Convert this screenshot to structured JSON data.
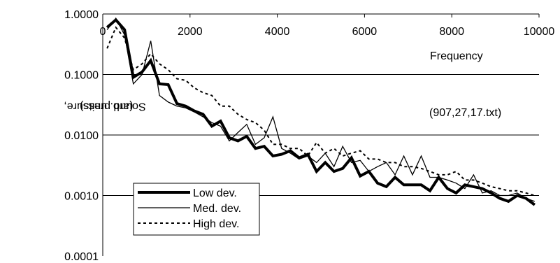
{
  "chart_data": {
    "type": "line",
    "title": "",
    "xlabel": "Frequency",
    "ylabel_line1": "Sound pressure,",
    "ylabel_line2": "(arb. units).",
    "annotation": "(907,27,17.txt)",
    "xlim": [
      0,
      10000
    ],
    "ylim": [
      0.0001,
      1.0
    ],
    "yscale": "log",
    "x_ticks": [
      "0",
      "2000",
      "4000",
      "6000",
      "8000",
      "10000"
    ],
    "y_ticks": [
      "1.0000",
      "0.1000",
      "0.0100",
      "0.0010",
      "0.0001"
    ],
    "grid": "horizontal",
    "legend_position": "lower-left",
    "series": [
      {
        "name": "Low dev.",
        "style": "thick-solid",
        "x": [
          100,
          300,
          500,
          700,
          900,
          1100,
          1300,
          1500,
          1700,
          1900,
          2100,
          2300,
          2500,
          2700,
          2900,
          3100,
          3300,
          3500,
          3700,
          3900,
          4100,
          4300,
          4500,
          4700,
          4900,
          5100,
          5300,
          5500,
          5700,
          5900,
          6100,
          6300,
          6500,
          6700,
          6900,
          7100,
          7300,
          7500,
          7700,
          7900,
          8100,
          8300,
          8500,
          8700,
          8900,
          9100,
          9300,
          9500,
          9700,
          9900
        ],
        "y": [
          0.6,
          0.8,
          0.55,
          0.09,
          0.11,
          0.17,
          0.07,
          0.068,
          0.033,
          0.03,
          0.025,
          0.022,
          0.014,
          0.017,
          0.009,
          0.008,
          0.0095,
          0.006,
          0.0065,
          0.0045,
          0.0048,
          0.0055,
          0.0042,
          0.0048,
          0.0025,
          0.0035,
          0.0025,
          0.0028,
          0.0042,
          0.0021,
          0.0025,
          0.0016,
          0.0014,
          0.002,
          0.0015,
          0.0015,
          0.0015,
          0.0012,
          0.002,
          0.0013,
          0.0011,
          0.0015,
          0.0014,
          0.0013,
          0.0011,
          0.0009,
          0.0008,
          0.001,
          0.0009,
          0.0007
        ]
      },
      {
        "name": "Med. dev.",
        "style": "thin-solid",
        "x": [
          100,
          300,
          500,
          700,
          900,
          1100,
          1300,
          1500,
          1700,
          1900,
          2100,
          2300,
          2500,
          2700,
          2900,
          3100,
          3300,
          3500,
          3700,
          3900,
          4100,
          4300,
          4500,
          4700,
          4900,
          5100,
          5300,
          5500,
          5700,
          5900,
          6100,
          6300,
          6500,
          6700,
          6900,
          7100,
          7300,
          7500,
          7700,
          7900,
          8100,
          8300,
          8500,
          8700,
          8900,
          9100,
          9300,
          9500,
          9700,
          9900
        ],
        "y": [
          0.55,
          0.85,
          0.45,
          0.07,
          0.1,
          0.36,
          0.045,
          0.035,
          0.03,
          0.028,
          0.024,
          0.02,
          0.016,
          0.014,
          0.008,
          0.011,
          0.015,
          0.007,
          0.009,
          0.02,
          0.006,
          0.005,
          0.004,
          0.0045,
          0.0035,
          0.005,
          0.003,
          0.0065,
          0.0035,
          0.0038,
          0.0025,
          0.003,
          0.0035,
          0.0022,
          0.0045,
          0.0022,
          0.0045,
          0.002,
          0.002,
          0.0018,
          0.0016,
          0.0013,
          0.0022,
          0.0011,
          0.0012,
          0.001,
          0.001,
          0.0011,
          0.0009,
          0.0008
        ]
      },
      {
        "name": "High dev.",
        "style": "dashed",
        "x": [
          100,
          300,
          500,
          700,
          900,
          1100,
          1300,
          1500,
          1700,
          1900,
          2100,
          2300,
          2500,
          2700,
          2900,
          3100,
          3300,
          3500,
          3700,
          3900,
          4100,
          4300,
          4500,
          4700,
          4900,
          5100,
          5300,
          5500,
          5700,
          5900,
          6100,
          6300,
          6500,
          6700,
          6900,
          7100,
          7300,
          7500,
          7700,
          7900,
          8100,
          8300,
          8500,
          8700,
          8900,
          9100,
          9300,
          9500,
          9700,
          9900
        ],
        "y": [
          0.27,
          0.6,
          0.4,
          0.12,
          0.15,
          0.22,
          0.15,
          0.12,
          0.085,
          0.08,
          0.06,
          0.05,
          0.045,
          0.03,
          0.03,
          0.022,
          0.018,
          0.016,
          0.012,
          0.007,
          0.007,
          0.006,
          0.006,
          0.0045,
          0.0075,
          0.005,
          0.006,
          0.0045,
          0.005,
          0.0055,
          0.004,
          0.004,
          0.0035,
          0.0035,
          0.003,
          0.003,
          0.0028,
          0.0025,
          0.0022,
          0.0022,
          0.0025,
          0.0018,
          0.0018,
          0.0016,
          0.0014,
          0.0013,
          0.0012,
          0.0012,
          0.0011,
          0.001
        ]
      }
    ]
  }
}
